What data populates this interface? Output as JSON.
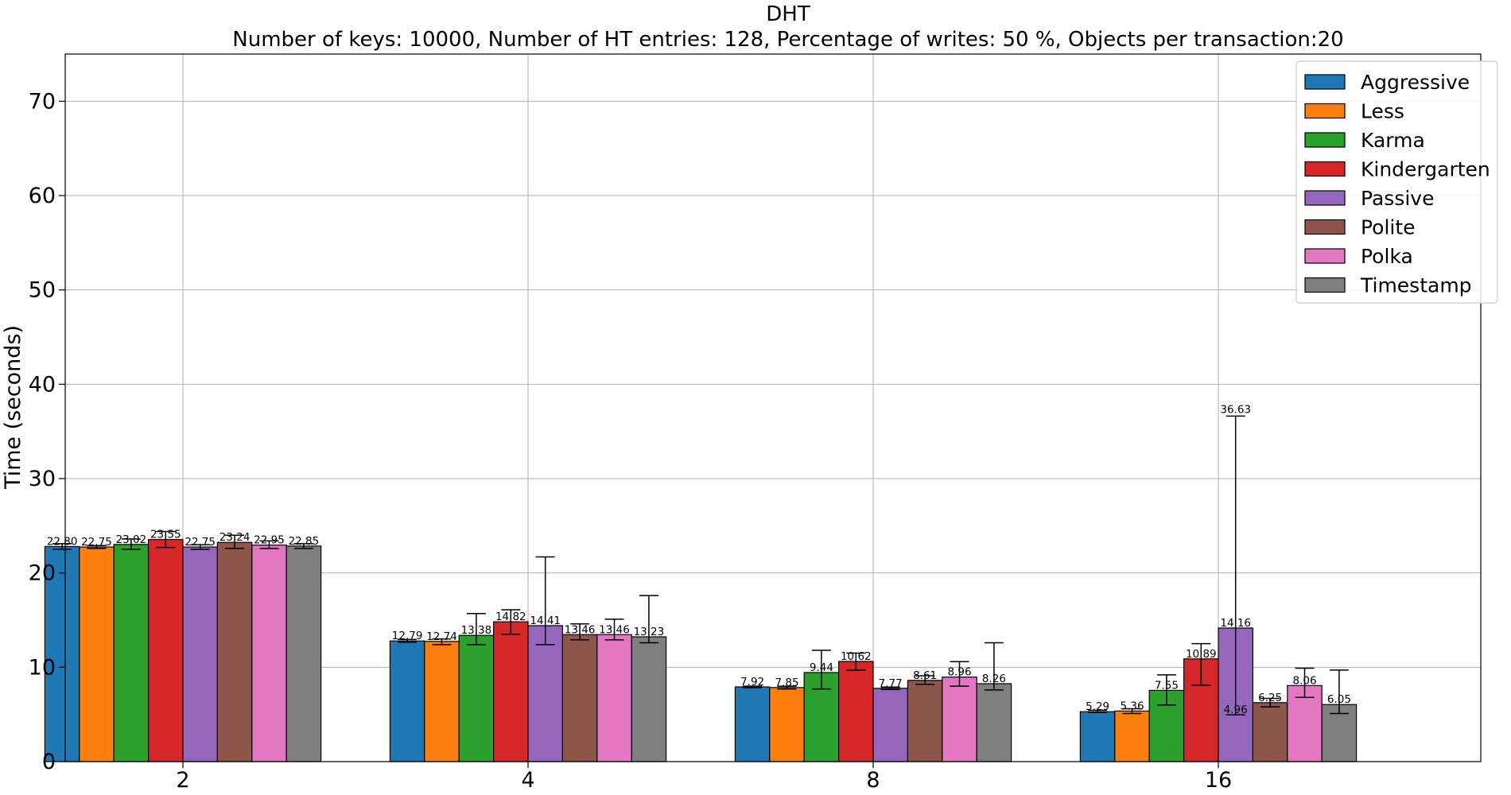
{
  "chart_data": {
    "type": "bar",
    "title": "DHT",
    "subtitle": "Number of keys: 10000, Number of HT entries: 128, Percentage of writes: 50 %, Objects per transaction:20",
    "xlabel": "",
    "ylabel": "Time (seconds)",
    "ylim": [
      0,
      75
    ],
    "yticks": [
      0,
      10,
      20,
      30,
      40,
      50,
      60,
      70
    ],
    "categories": [
      "2",
      "4",
      "8",
      "16"
    ],
    "grid": true,
    "legend_position": "top-right",
    "series": [
      {
        "name": "Aggressive",
        "color": "#1f77b4",
        "values": [
          22.8,
          12.79,
          7.92,
          5.29
        ],
        "labels": [
          "22.80",
          "12.79",
          "7.92",
          "5.29"
        ],
        "err_low": [
          22.5,
          12.65,
          7.85,
          5.2
        ],
        "err_high": [
          23.1,
          12.95,
          8.0,
          5.45
        ]
      },
      {
        "name": "Less",
        "color": "#ff7f0e",
        "values": [
          22.75,
          12.74,
          7.85,
          5.36
        ],
        "labels": [
          "22.75",
          "12.74",
          "7.85",
          "5.36"
        ],
        "err_low": [
          22.6,
          12.4,
          7.7,
          5.1
        ],
        "err_high": [
          22.9,
          13.0,
          8.0,
          5.6
        ]
      },
      {
        "name": "Karma",
        "color": "#2ca02c",
        "values": [
          23.02,
          13.38,
          9.44,
          7.55
        ],
        "labels": [
          "23.02",
          "13.38",
          "9.44",
          "7.55"
        ],
        "err_low": [
          22.5,
          12.4,
          7.7,
          6.0
        ],
        "err_high": [
          23.6,
          15.7,
          11.8,
          9.2
        ]
      },
      {
        "name": "Kindergarten",
        "color": "#d62728",
        "values": [
          23.55,
          14.82,
          10.62,
          10.89
        ],
        "labels": [
          "23.55",
          "14.82",
          "10.62",
          "10.89"
        ],
        "err_low": [
          22.7,
          13.5,
          9.7,
          8.1
        ],
        "err_high": [
          24.4,
          16.1,
          11.5,
          12.5
        ]
      },
      {
        "name": "Passive",
        "color": "#9467bd",
        "values": [
          22.75,
          14.41,
          7.77,
          14.16
        ],
        "labels": [
          "22.75",
          "14.41",
          "7.77",
          "14.16"
        ],
        "err_low": [
          22.5,
          12.4,
          7.65,
          4.96
        ],
        "err_high": [
          23.0,
          21.7,
          7.9,
          36.63
        ],
        "err_labels": [
          null,
          null,
          null,
          {
            "low": "4.96",
            "high": "36.63"
          }
        ]
      },
      {
        "name": "Polite",
        "color": "#8c564b",
        "values": [
          23.24,
          13.46,
          8.61,
          6.25
        ],
        "labels": [
          "23.24",
          "13.46",
          "8.61",
          "6.25"
        ],
        "err_low": [
          22.6,
          12.9,
          8.2,
          5.8
        ],
        "err_high": [
          24.0,
          14.6,
          9.1,
          6.7
        ]
      },
      {
        "name": "Polka",
        "color": "#e377c2",
        "values": [
          22.95,
          13.46,
          8.96,
          8.06
        ],
        "labels": [
          "22.95",
          "13.46",
          "8.96",
          "8.06"
        ],
        "err_low": [
          22.6,
          12.9,
          8.0,
          6.8
        ],
        "err_high": [
          23.4,
          15.1,
          10.6,
          9.9
        ]
      },
      {
        "name": "Timestamp",
        "color": "#7f7f7f",
        "values": [
          22.85,
          13.23,
          8.26,
          6.05
        ],
        "labels": [
          "22.85",
          "13.23",
          "8.26",
          "6.05"
        ],
        "err_low": [
          22.6,
          12.6,
          7.6,
          5.1
        ],
        "err_high": [
          23.1,
          17.6,
          12.6,
          9.7
        ]
      }
    ]
  }
}
